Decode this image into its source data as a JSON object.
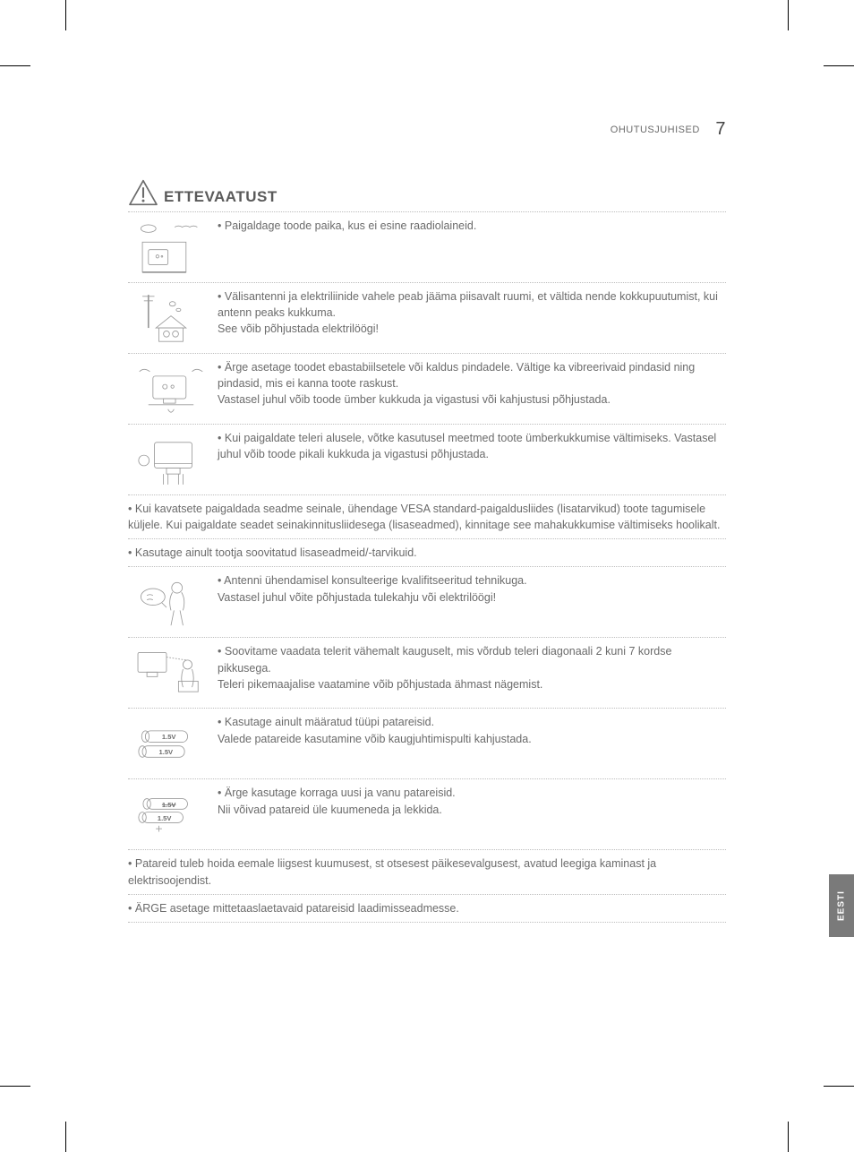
{
  "header": {
    "section_name": "OHUTUSJUHISED",
    "page_number": "7"
  },
  "section": {
    "title": "ETTEVAATUST"
  },
  "rows": [
    {
      "text": "Paigaldage toode paika, kus ei esine raadiolaineid."
    },
    {
      "text": "Välisantenni ja elektriliinide vahele peab jääma piisavalt ruumi, et vältida nende kokkupuutumist, kui antenn peaks kukkuma.\nSee võib põhjustada elektrilöögi!"
    },
    {
      "text": "Ärge asetage toodet ebastabiilsetele või kaldus pindadele. Vältige ka vibreerivaid pindasid ning pindasid, mis ei kanna toote raskust.\nVastasel juhul võib toode ümber kukkuda ja vigastusi või kahjustusi põhjustada."
    },
    {
      "text": "Kui paigaldate teleri alusele, võtke kasutusel meetmed toote ümberkukkumise vältimiseks. Vastasel juhul võib toode pikali kukkuda ja vigastusi põhjustada."
    }
  ],
  "full_rows_a": [
    {
      "text": "Kui kavatsete paigaldada seadme seinale, ühendage VESA standard-paigaldusliides (lisatarvikud) toote tagumisele küljele. Kui paigaldate seadet seinakinnitusliidesega (lisaseadmed), kinnitage see mahakukkumise vältimiseks hoolikalt."
    },
    {
      "text": "Kasutage ainult tootja soovitatud lisaseadmeid/-tarvikuid."
    }
  ],
  "rows_b": [
    {
      "text": "Antenni ühendamisel konsulteerige kvalifitseeritud tehnikuga.\nVastasel juhul võite põhjustada tulekahju või elektrilöögi!"
    },
    {
      "text": "Soovitame vaadata telerit vähemalt kauguselt, mis võrdub teleri diagonaali 2 kuni 7 kordse pikkusega.\nTeleri pikemaajalise vaatamine võib põhjustada ähmast nägemist."
    },
    {
      "text": "Kasutage ainult määratud tüüpi patareisid.\nValede patareide kasutamine võib kaugjuhtimispulti kahjustada."
    },
    {
      "text": "Ärge kasutage korraga uusi ja vanu patareisid.\nNii võivad patareid üle kuumeneda ja lekkida."
    }
  ],
  "full_rows_b": [
    {
      "text": "Patareid tuleb hoida eemale liigsest kuumusest, st otsesest päikesevalgusest, avatud leegiga kaminast ja elektrisoojendist."
    },
    {
      "text": "ÄRGE asetage mittetaaslaetavaid patareisid laadimisseadmesse."
    }
  ],
  "battery_label": "1.5V",
  "side_tab": "EESTI",
  "colors": {
    "text": "#6b6b6b",
    "dotted": "#bdbdbd",
    "tab_bg": "#7a7a7a",
    "tab_fg": "#ffffff"
  }
}
